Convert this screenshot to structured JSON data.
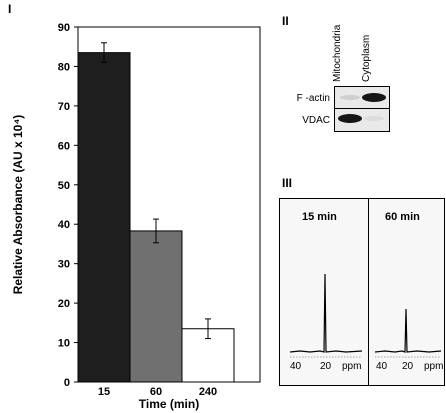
{
  "panels": {
    "chart_label": "I",
    "blot_label": "II",
    "nmr_label": "III"
  },
  "chart_data": {
    "type": "bar",
    "title": "",
    "xlabel": "Time (min)",
    "ylabel": "Relative Absorbance (AU x 10⁴)",
    "categories": [
      "15",
      "60",
      "240"
    ],
    "values": [
      83.5,
      38.3,
      13.5
    ],
    "errors": [
      2.5,
      3.0,
      2.5
    ],
    "bar_colors": [
      "#1e1e1e",
      "#707070",
      "#ffffff"
    ],
    "ylim": [
      0,
      90
    ],
    "yticks": [
      0,
      10,
      20,
      30,
      40,
      50,
      60,
      70,
      80,
      90
    ],
    "grid": false,
    "legend": "none"
  },
  "western_blot": {
    "columns": [
      "Mitochondria",
      "Cytoplasm"
    ],
    "rows": [
      "F -actin",
      "VDAC"
    ],
    "bands": "F-actin strong in Cytoplasm; VDAC strong in Mitochondria"
  },
  "nmr": {
    "spectra": [
      {
        "title": "15 min",
        "ticks": [
          "40",
          "20",
          "ppm"
        ]
      },
      {
        "title": "60 min",
        "ticks": [
          "40",
          "20",
          "ppm"
        ]
      }
    ]
  }
}
